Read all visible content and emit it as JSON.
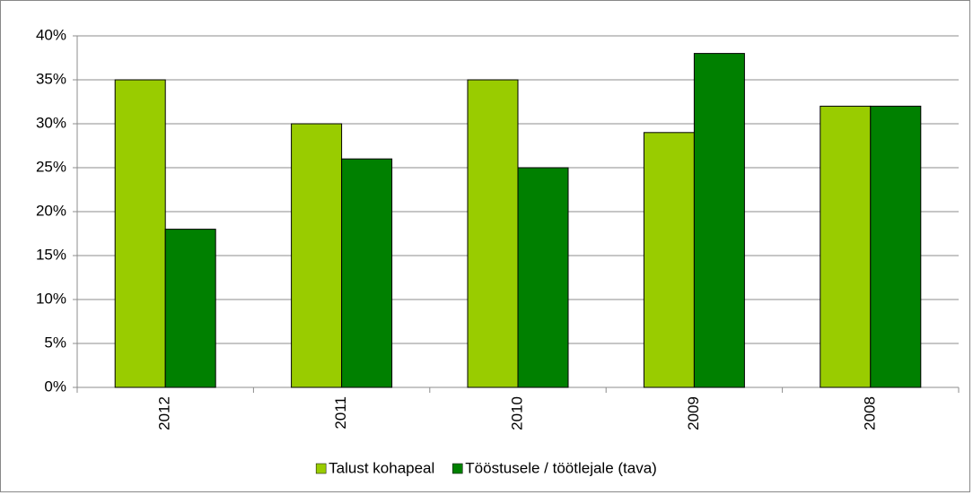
{
  "chart_data": {
    "type": "bar",
    "categories": [
      "2012",
      "2011",
      "2010",
      "2009",
      "2008"
    ],
    "series": [
      {
        "name": "Talust kohapeal",
        "color": "#99cc00",
        "values": [
          35,
          30,
          35,
          29,
          32
        ]
      },
      {
        "name": "Tööstusele / töötlejale (tava)",
        "color": "#008000",
        "values": [
          18,
          26,
          25,
          38,
          32
        ]
      }
    ],
    "ylim": [
      0,
      40
    ],
    "yticks": [
      {
        "value": 0,
        "label": "0%"
      },
      {
        "value": 5,
        "label": "5%"
      },
      {
        "value": 10,
        "label": "10%"
      },
      {
        "value": 15,
        "label": "15%"
      },
      {
        "value": 20,
        "label": "20%"
      },
      {
        "value": 25,
        "label": "25%"
      },
      {
        "value": 30,
        "label": "30%"
      },
      {
        "value": 35,
        "label": "35%"
      },
      {
        "value": 40,
        "label": "40%"
      }
    ],
    "grid": true,
    "legend": "bottom"
  }
}
